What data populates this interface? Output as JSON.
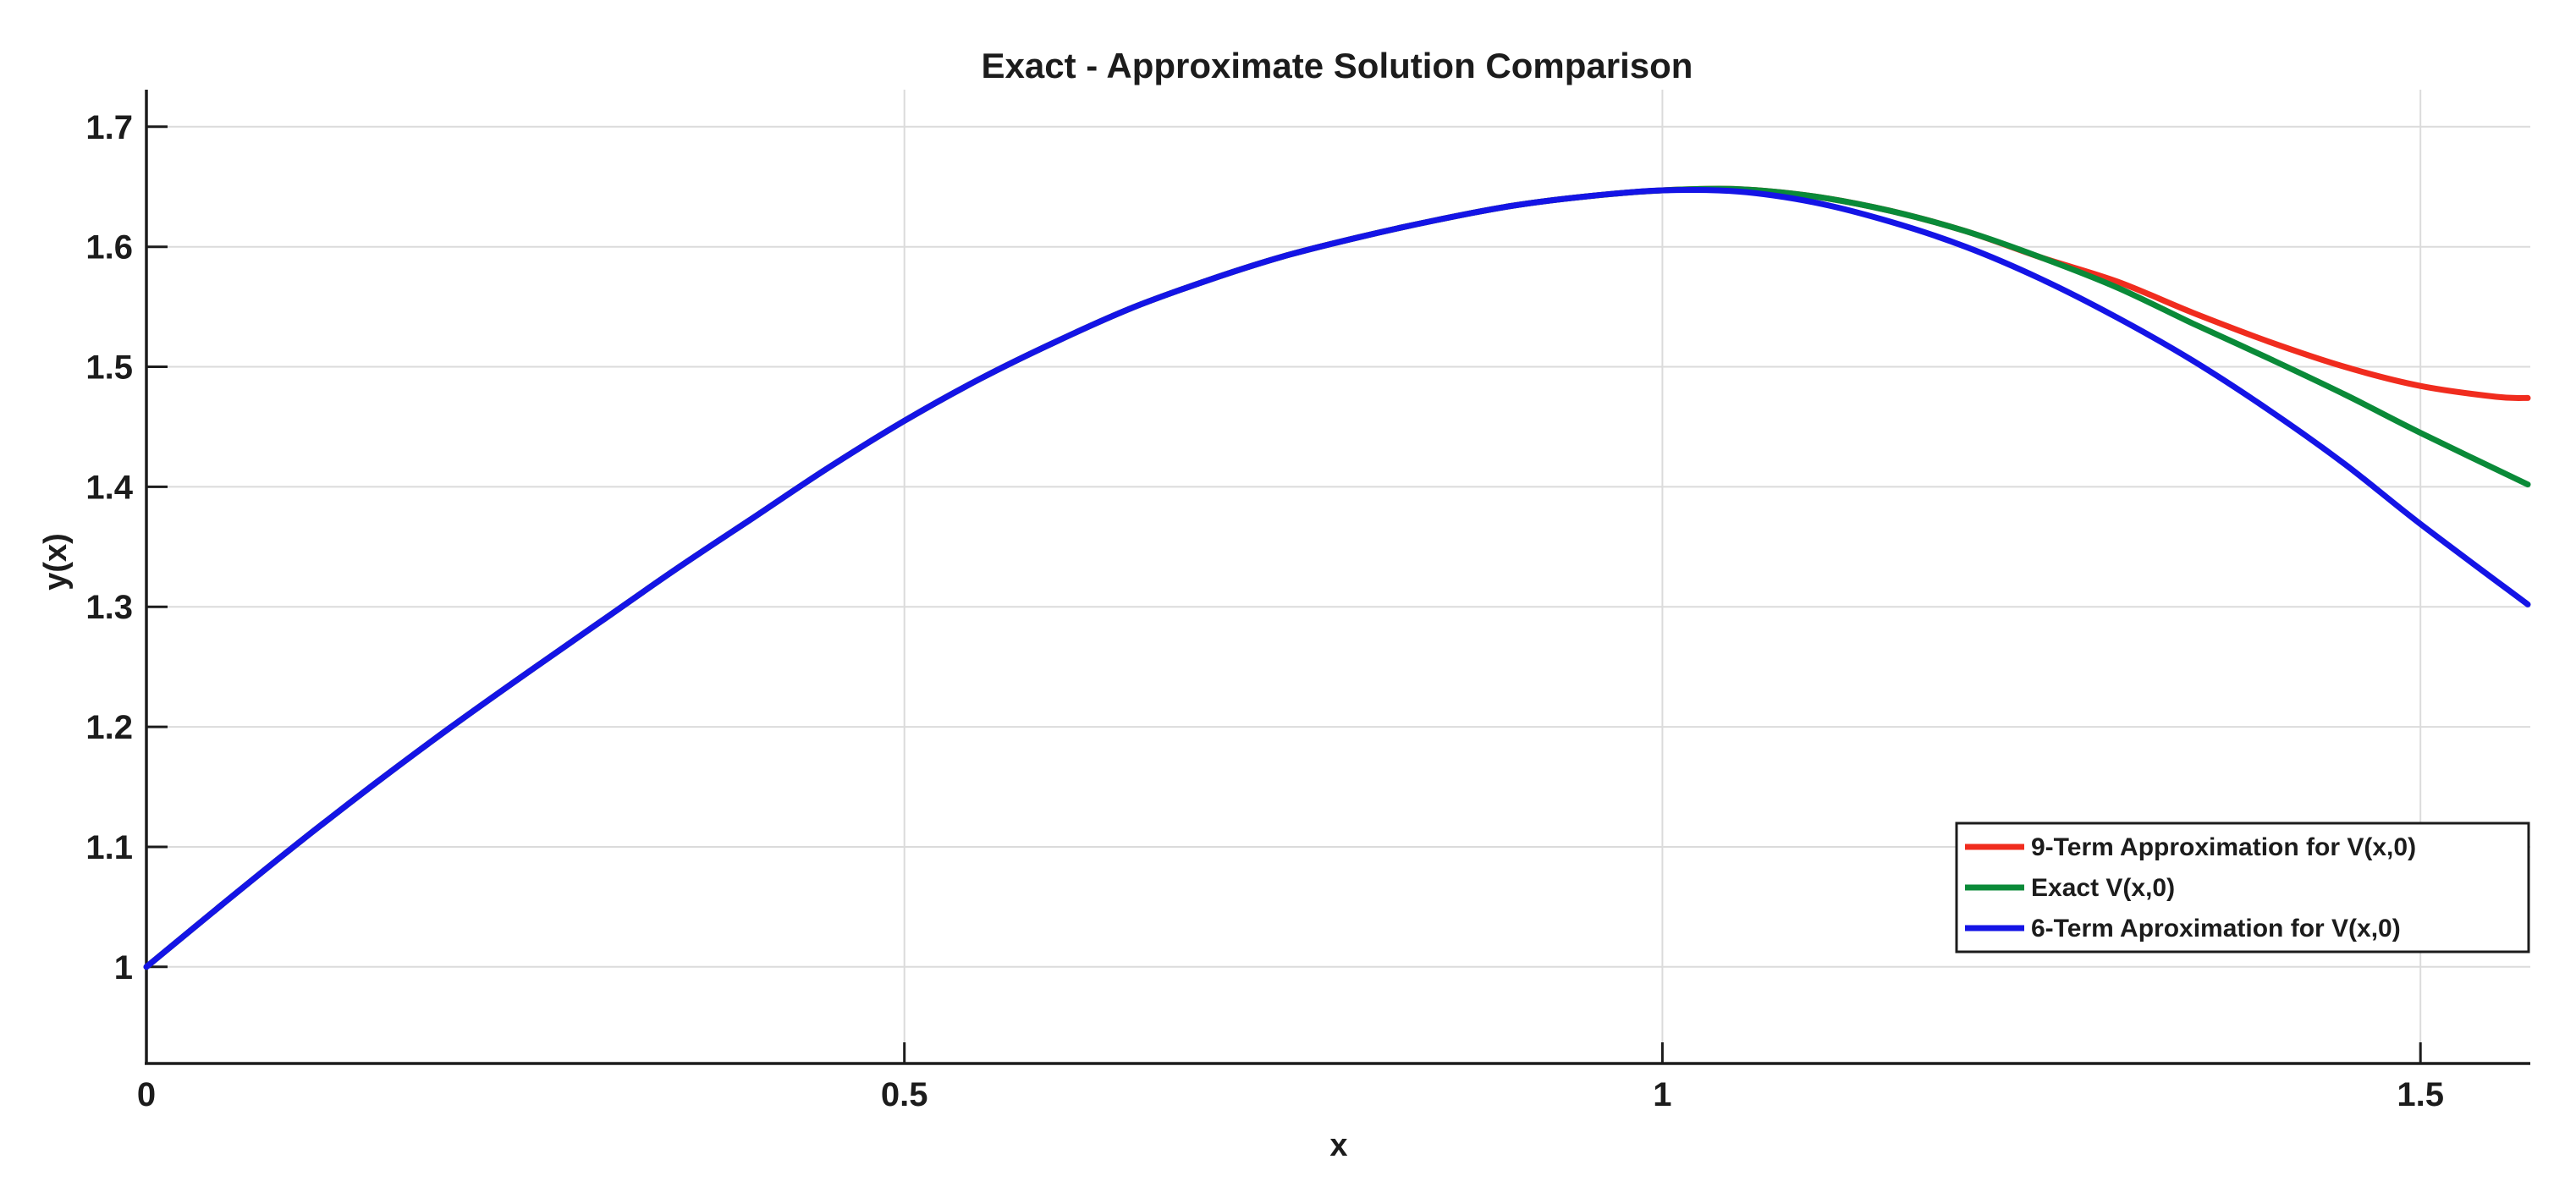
{
  "figure": {
    "background": "#ffffff",
    "text_color": "#1c1c1c",
    "grid_color": "#dbdbdb"
  },
  "chart_data": {
    "type": "line",
    "title": "Exact - Approximate Solution Comparison",
    "xlabel": "x",
    "ylabel": "y(x)",
    "xlim": [
      0,
      1.5708
    ],
    "ylim": [
      0.9195,
      1.7309
    ],
    "grid": true,
    "legend_position": "southeast",
    "xticks": {
      "values": [
        0,
        0.5,
        1,
        1.5
      ],
      "labels": [
        "0",
        "0.5",
        "1",
        "1.5"
      ]
    },
    "yticks": {
      "values": [
        1,
        1.1,
        1.2,
        1.3,
        1.4,
        1.5,
        1.6,
        1.7
      ],
      "labels": [
        "1",
        "1.1",
        "1.2",
        "1.3",
        "1.4",
        "1.5",
        "1.6",
        "1.7"
      ]
    },
    "series": [
      {
        "name": "9-Term Approximation for V(x,0)",
        "color": "#f02c1e",
        "x": [
          0,
          0.05,
          0.1,
          0.15,
          0.2,
          0.25,
          0.3,
          0.35,
          0.4,
          0.45,
          0.5,
          0.55,
          0.6,
          0.65,
          0.7,
          0.75,
          0.8,
          0.85,
          0.9,
          0.95,
          1.0,
          1.05,
          1.1,
          1.15,
          1.2,
          1.25,
          1.3,
          1.35,
          1.4,
          1.45,
          1.5,
          1.55,
          1.5708
        ],
        "y": [
          1.0,
          1.052,
          1.103,
          1.152,
          1.199,
          1.244,
          1.288,
          1.332,
          1.374,
          1.416,
          1.455,
          1.49,
          1.521,
          1.549,
          1.572,
          1.592,
          1.608,
          1.622,
          1.634,
          1.642,
          1.647,
          1.648,
          1.642,
          1.63,
          1.613,
          1.591,
          1.571,
          1.545,
          1.521,
          1.5,
          1.484,
          1.475,
          1.474
        ]
      },
      {
        "name": "Exact V(x,0)",
        "color": "#0a8a38",
        "x": [
          0,
          0.05,
          0.1,
          0.15,
          0.2,
          0.25,
          0.3,
          0.35,
          0.4,
          0.45,
          0.5,
          0.55,
          0.6,
          0.65,
          0.7,
          0.75,
          0.8,
          0.85,
          0.9,
          0.95,
          1.0,
          1.05,
          1.1,
          1.15,
          1.2,
          1.25,
          1.3,
          1.35,
          1.4,
          1.45,
          1.5,
          1.5708
        ],
        "y": [
          1.0,
          1.052,
          1.103,
          1.152,
          1.199,
          1.244,
          1.288,
          1.332,
          1.374,
          1.416,
          1.455,
          1.49,
          1.521,
          1.549,
          1.572,
          1.592,
          1.608,
          1.622,
          1.634,
          1.642,
          1.647,
          1.648,
          1.642,
          1.63,
          1.613,
          1.591,
          1.566,
          1.536,
          1.507,
          1.477,
          1.445,
          1.402
        ]
      },
      {
        "name": "6-Term Aproximation for V(x,0)",
        "color": "#1414e6",
        "x": [
          0,
          0.05,
          0.1,
          0.15,
          0.2,
          0.25,
          0.3,
          0.35,
          0.4,
          0.45,
          0.5,
          0.55,
          0.6,
          0.65,
          0.7,
          0.75,
          0.8,
          0.85,
          0.9,
          0.95,
          1.0,
          1.05,
          1.1,
          1.15,
          1.2,
          1.25,
          1.3,
          1.35,
          1.4,
          1.45,
          1.5,
          1.5708
        ],
        "y": [
          1.0,
          1.052,
          1.103,
          1.152,
          1.199,
          1.244,
          1.288,
          1.332,
          1.374,
          1.416,
          1.455,
          1.49,
          1.521,
          1.549,
          1.572,
          1.592,
          1.608,
          1.622,
          1.634,
          1.642,
          1.647,
          1.646,
          1.637,
          1.621,
          1.6,
          1.573,
          1.541,
          1.505,
          1.464,
          1.419,
          1.369,
          1.302
        ]
      }
    ]
  }
}
